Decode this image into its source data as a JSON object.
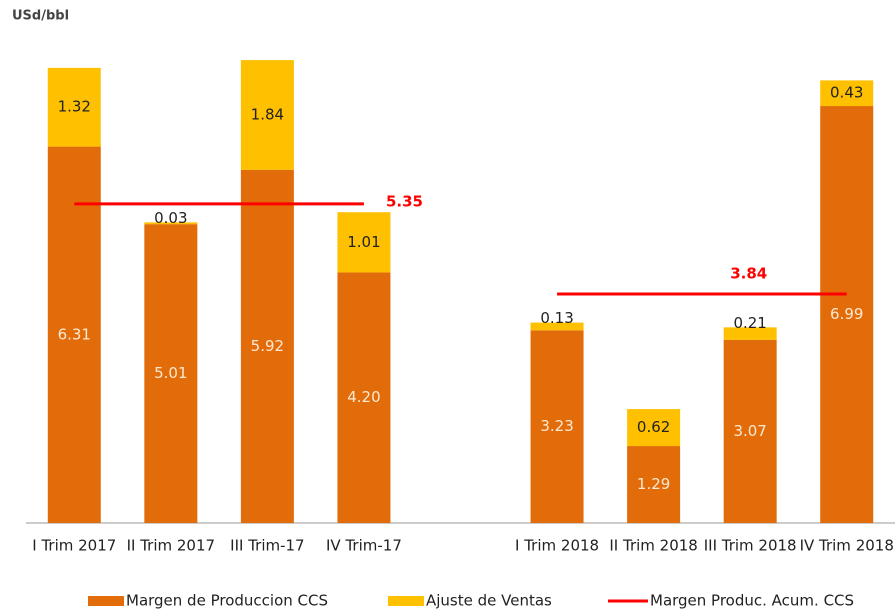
{
  "chart_data": {
    "type": "stacked-bar-line",
    "title": "USd/bbl",
    "categories": [
      "I Trim 2017",
      "II Trim 2017",
      "III Trim-17",
      "IV Trim-17",
      null,
      "I Trim 2018",
      "II Trim 2018",
      "III Trim 2018",
      "IV Trim 2018"
    ],
    "ylim": [
      0,
      8.6
    ],
    "series": [
      {
        "name": "Margen de Produccion CCS",
        "color": "#e36c0a",
        "kind": "bar",
        "values": [
          6.31,
          5.01,
          5.92,
          4.2,
          null,
          3.23,
          1.29,
          3.07,
          6.99
        ],
        "value_labels": [
          "6.31",
          "5.01",
          "5.92",
          "4.20",
          null,
          "3.23",
          "1.29",
          "3.07",
          "6.99"
        ]
      },
      {
        "name": "Ajuste de Ventas",
        "color": "#ffc000",
        "kind": "bar",
        "values": [
          1.32,
          0.03,
          1.84,
          1.01,
          null,
          0.13,
          0.62,
          0.21,
          0.43
        ]
      },
      {
        "name": "Margen Produc. Acum. CCS",
        "color": "#ff0000",
        "kind": "line",
        "values": [
          5.35,
          5.35,
          5.35,
          5.35,
          null,
          3.84,
          3.84,
          3.84,
          3.84
        ]
      }
    ]
  }
}
